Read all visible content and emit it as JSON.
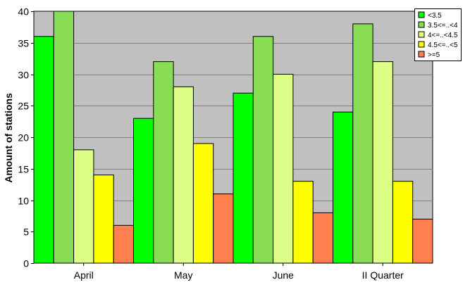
{
  "chart_data": {
    "type": "bar",
    "title": "",
    "xlabel": "",
    "ylabel": "Amount of stations",
    "ylim": [
      0,
      40
    ],
    "yticks": [
      0,
      5,
      10,
      15,
      20,
      25,
      30,
      35,
      40
    ],
    "categories": [
      "April",
      "May",
      "June",
      "II Quarter"
    ],
    "series": [
      {
        "name": "<3.5",
        "color": "#00ff00",
        "values": [
          36,
          23,
          27,
          24
        ]
      },
      {
        "name": "3.5<=..<4",
        "color": "#88dd55",
        "values": [
          40,
          32,
          36,
          38
        ]
      },
      {
        "name": "4<=..<4.5",
        "color": "#ddff88",
        "values": [
          18,
          28,
          30,
          32
        ]
      },
      {
        "name": "4.5<=..<5",
        "color": "#ffff00",
        "values": [
          14,
          19,
          13,
          13
        ]
      },
      {
        "name": ">=5",
        "color": "#ff7f4f",
        "values": [
          6,
          11,
          8,
          7
        ]
      }
    ],
    "grid": true,
    "plot_background": "#c0c0c0",
    "legend_position": "top-right"
  }
}
